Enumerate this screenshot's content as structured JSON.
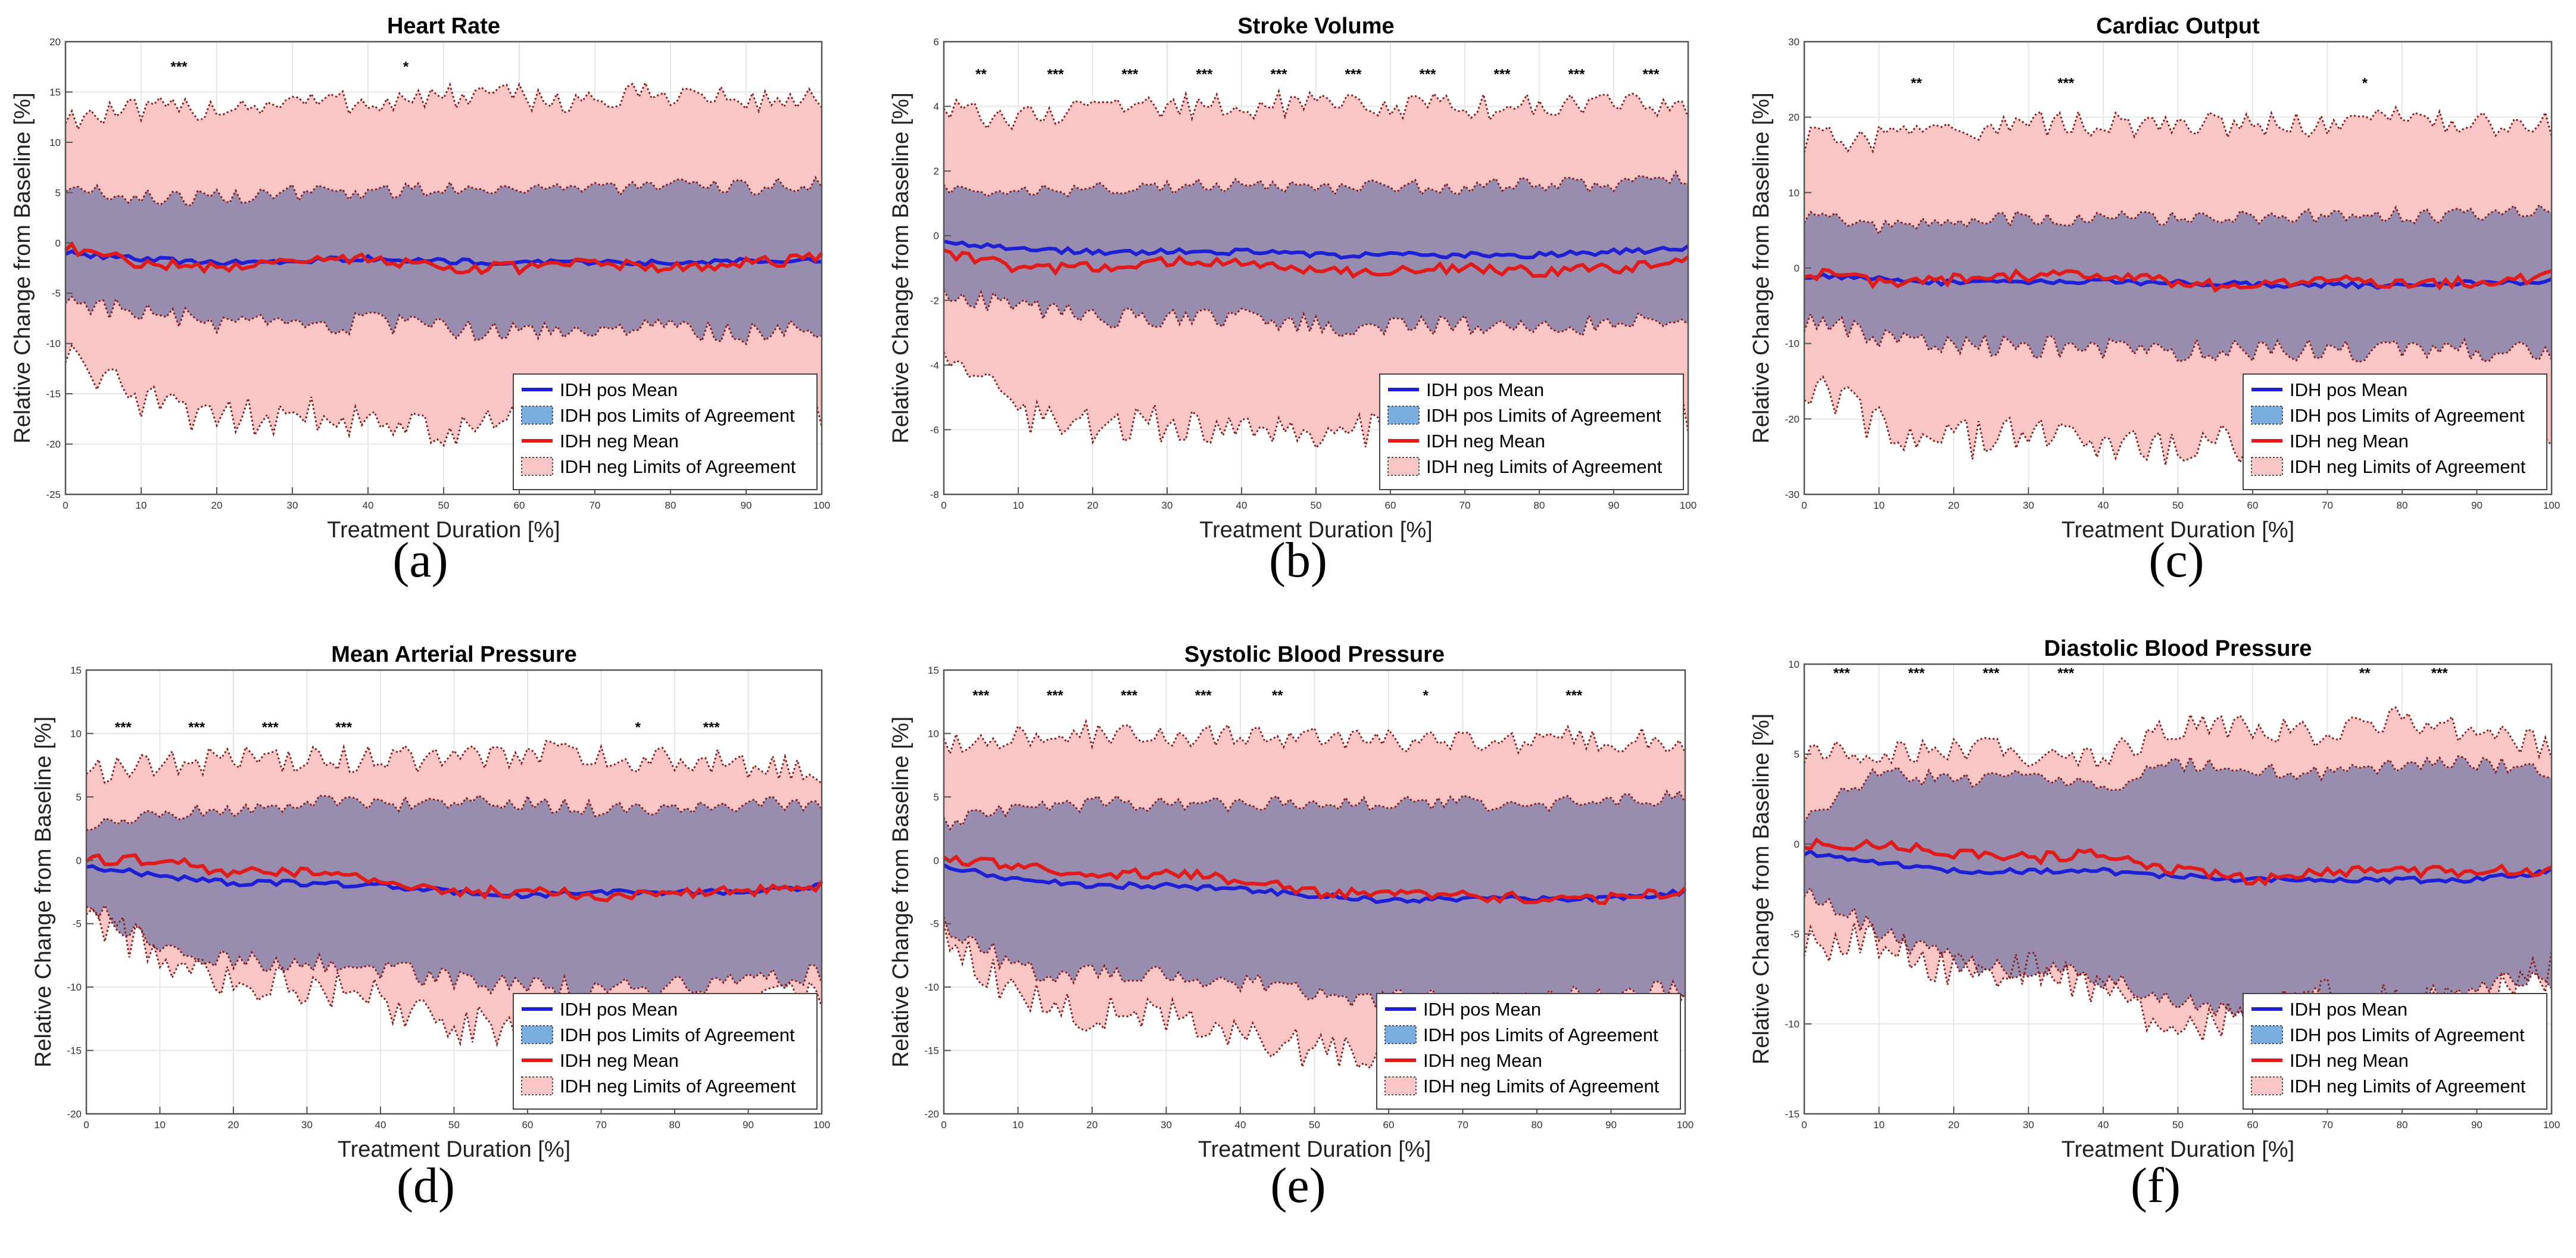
{
  "figure": {
    "legend_labels": [
      "IDH pos Mean",
      "IDH pos Limits of Agreement",
      "IDH neg Mean",
      "IDH neg Limits of Agreement"
    ],
    "colors": {
      "pos_line": "#1f1fd6",
      "pos_fill": "#7aaee0",
      "neg_line": "#e11a1a",
      "neg_fill": "#f9c6c6",
      "overlap_fill": "#8f87ad",
      "bound_line": "#8b1a1a"
    }
  },
  "chart_data": [
    {
      "type": "area",
      "panel_label": "(a)",
      "title": "Heart Rate",
      "xlabel": "Treatment Duration [%]",
      "ylabel": "Relative Change from Baseline [%]",
      "xlim": [
        0,
        100
      ],
      "ylim": [
        -25,
        20
      ],
      "xticks": [
        0,
        10,
        20,
        30,
        40,
        50,
        60,
        70,
        80,
        90,
        100
      ],
      "yticks": [
        -25,
        -20,
        -15,
        -10,
        -5,
        0,
        5,
        10,
        15,
        20
      ],
      "grid": true,
      "legend_position": "bottom-right",
      "x": [
        0,
        10,
        20,
        30,
        40,
        50,
        60,
        70,
        80,
        90,
        100
      ],
      "series": [
        {
          "name": "IDH pos Mean",
          "values": [
            -1,
            -1.6,
            -2,
            -1.8,
            -1.5,
            -1.8,
            -2,
            -1.9,
            -2,
            -1.8,
            -1.6
          ]
        },
        {
          "name": "IDH pos Limits of Agreement (upper)",
          "values": [
            5.5,
            4.5,
            4.5,
            5,
            5,
            5.5,
            5.5,
            5.5,
            5.5,
            5.5,
            6
          ]
        },
        {
          "name": "IDH pos Limits of Agreement (lower)",
          "values": [
            -5.5,
            -7,
            -8,
            -8.5,
            -8,
            -8.5,
            -9,
            -8.5,
            -8.5,
            -9,
            -8.5
          ]
        },
        {
          "name": "IDH neg Mean",
          "values": [
            -0.5,
            -2,
            -2.5,
            -1.5,
            -1.5,
            -2.5,
            -2.5,
            -2,
            -2.5,
            -2,
            -1.5
          ]
        },
        {
          "name": "IDH neg Limits of Agreement (upper)",
          "values": [
            12.5,
            13,
            13.5,
            14,
            14,
            14.5,
            14.5,
            14,
            15,
            14,
            14.5
          ]
        },
        {
          "name": "IDH neg Limits of Agreement (lower)",
          "values": [
            -11,
            -16,
            -17.5,
            -17,
            -17.5,
            -18.5,
            -18,
            -17.5,
            -17.5,
            -17,
            -16.5
          ]
        }
      ],
      "annotations": [
        {
          "x": 15,
          "text": "***"
        },
        {
          "x": 45,
          "text": "*"
        }
      ],
      "annotation_y": 17.5
    },
    {
      "type": "area",
      "panel_label": "(b)",
      "title": "Stroke Volume",
      "xlabel": "Treatment Duration [%]",
      "ylabel": "Relative Change from Baseline [%]",
      "xlim": [
        0,
        100
      ],
      "ylim": [
        -8,
        6
      ],
      "xticks": [
        0,
        10,
        20,
        30,
        40,
        50,
        60,
        70,
        80,
        90,
        100
      ],
      "yticks": [
        -8,
        -6,
        -4,
        -2,
        0,
        2,
        4,
        6
      ],
      "grid": true,
      "legend_position": "bottom-right",
      "x": [
        0,
        10,
        20,
        30,
        40,
        50,
        60,
        70,
        80,
        90,
        100
      ],
      "series": [
        {
          "name": "IDH pos Mean",
          "values": [
            -0.2,
            -0.4,
            -0.5,
            -0.5,
            -0.5,
            -0.6,
            -0.6,
            -0.6,
            -0.6,
            -0.5,
            -0.4
          ]
        },
        {
          "name": "IDH pos Limits of Agreement (upper)",
          "values": [
            1.5,
            1.3,
            1.4,
            1.5,
            1.5,
            1.5,
            1.5,
            1.5,
            1.6,
            1.6,
            1.8
          ]
        },
        {
          "name": "IDH pos Limits of Agreement (lower)",
          "values": [
            -1.8,
            -2.2,
            -2.5,
            -2.6,
            -2.6,
            -2.8,
            -2.8,
            -2.8,
            -2.8,
            -2.7,
            -2.5
          ]
        },
        {
          "name": "IDH neg Mean",
          "values": [
            -0.5,
            -1,
            -1,
            -0.8,
            -0.8,
            -1.1,
            -1.1,
            -1,
            -1.1,
            -1,
            -0.8
          ]
        },
        {
          "name": "IDH neg Limits of Agreement (upper)",
          "values": [
            3.8,
            3.7,
            3.8,
            4,
            4,
            4.1,
            4,
            4,
            4,
            4,
            4
          ]
        },
        {
          "name": "IDH neg Limits of Agreement (lower)",
          "values": [
            -3.8,
            -5.5,
            -5.8,
            -5.8,
            -5.8,
            -6.2,
            -6,
            -5.8,
            -5.8,
            -5.8,
            -5.5
          ]
        }
      ],
      "annotations": [
        {
          "x": 5,
          "text": "**"
        },
        {
          "x": 15,
          "text": "***"
        },
        {
          "x": 25,
          "text": "***"
        },
        {
          "x": 35,
          "text": "***"
        },
        {
          "x": 45,
          "text": "***"
        },
        {
          "x": 55,
          "text": "***"
        },
        {
          "x": 65,
          "text": "***"
        },
        {
          "x": 75,
          "text": "***"
        },
        {
          "x": 85,
          "text": "***"
        },
        {
          "x": 95,
          "text": "***"
        }
      ],
      "annotation_y": 5
    },
    {
      "type": "area",
      "panel_label": "(c)",
      "title": "Cardiac Output",
      "xlabel": "Treatment Duration [%]",
      "ylabel": "Relative Change from Baseline [%]",
      "xlim": [
        0,
        100
      ],
      "ylim": [
        -30,
        30
      ],
      "xticks": [
        0,
        10,
        20,
        30,
        40,
        50,
        60,
        70,
        80,
        90,
        100
      ],
      "yticks": [
        -30,
        -20,
        -10,
        0,
        10,
        20,
        30
      ],
      "grid": true,
      "legend_position": "bottom-right",
      "x": [
        0,
        10,
        20,
        30,
        40,
        50,
        60,
        70,
        80,
        90,
        100
      ],
      "series": [
        {
          "name": "IDH pos Mean",
          "values": [
            -1,
            -1.5,
            -2,
            -1.8,
            -1.8,
            -2,
            -2.2,
            -2.2,
            -2.3,
            -2,
            -1.8
          ]
        },
        {
          "name": "IDH pos Limits of Agreement (upper)",
          "values": [
            7,
            5.5,
            6,
            6.5,
            6.5,
            6.5,
            6.5,
            7,
            7,
            7,
            8
          ]
        },
        {
          "name": "IDH pos Limits of Agreement (lower)",
          "values": [
            -7,
            -9,
            -10,
            -10.5,
            -10.5,
            -11,
            -11,
            -11,
            -11,
            -11,
            -11
          ]
        },
        {
          "name": "IDH neg Mean",
          "values": [
            -0.5,
            -2,
            -1.5,
            -1,
            -1,
            -2,
            -2.5,
            -1.5,
            -2,
            -2,
            -1
          ]
        },
        {
          "name": "IDH neg Limits of Agreement (upper)",
          "values": [
            17,
            17,
            18,
            19,
            19,
            19,
            19,
            19,
            20,
            19,
            19
          ]
        },
        {
          "name": "IDH neg Limits of Agreement (lower)",
          "values": [
            -15,
            -21,
            -23,
            -22,
            -23,
            -24,
            -23,
            -22,
            -22,
            -22,
            -21
          ]
        }
      ],
      "annotations": [
        {
          "x": 15,
          "text": "**"
        },
        {
          "x": 35,
          "text": "***"
        },
        {
          "x": 75,
          "text": "*"
        }
      ],
      "annotation_y": 24.5
    },
    {
      "type": "area",
      "panel_label": "(d)",
      "title": "Mean Arterial Pressure",
      "xlabel": "Treatment Duration [%]",
      "ylabel": "Relative Change from Baseline [%]",
      "xlim": [
        0,
        100
      ],
      "ylim": [
        -20,
        15
      ],
      "xticks": [
        0,
        10,
        20,
        30,
        40,
        50,
        60,
        70,
        80,
        90,
        100
      ],
      "yticks": [
        -20,
        -15,
        -10,
        -5,
        0,
        5,
        10,
        15
      ],
      "grid": true,
      "legend_position": "bottom-right",
      "x": [
        0,
        10,
        20,
        30,
        40,
        50,
        60,
        70,
        80,
        90,
        100
      ],
      "series": [
        {
          "name": "IDH pos Mean",
          "values": [
            -0.5,
            -1.2,
            -1.8,
            -1.8,
            -2,
            -2.5,
            -2.8,
            -2.5,
            -2.5,
            -2.5,
            -2
          ]
        },
        {
          "name": "IDH pos Limits of Agreement (upper)",
          "values": [
            2.5,
            3.5,
            4,
            4.5,
            4.5,
            4.5,
            4.5,
            4,
            4,
            4.5,
            4.5
          ]
        },
        {
          "name": "IDH pos Limits of Agreement (lower)",
          "values": [
            -3.5,
            -7,
            -8,
            -8,
            -8.5,
            -9.5,
            -10,
            -10,
            -10,
            -9.5,
            -9
          ]
        },
        {
          "name": "IDH neg Mean",
          "values": [
            0,
            0,
            -1,
            -1,
            -1.5,
            -2.5,
            -2.5,
            -2.8,
            -2.5,
            -2.5,
            -2
          ]
        },
        {
          "name": "IDH neg Limits of Agreement (upper)",
          "values": [
            7,
            7.5,
            8,
            8,
            8,
            8,
            8.5,
            8,
            8,
            7.5,
            7
          ]
        },
        {
          "name": "IDH neg Limits of Agreement (lower)",
          "values": [
            -4,
            -8,
            -10,
            -10,
            -11,
            -13,
            -13,
            -12,
            -12,
            -12,
            -10
          ]
        }
      ],
      "annotations": [
        {
          "x": 5,
          "text": "***"
        },
        {
          "x": 15,
          "text": "***"
        },
        {
          "x": 25,
          "text": "***"
        },
        {
          "x": 35,
          "text": "***"
        },
        {
          "x": 75,
          "text": "*"
        },
        {
          "x": 85,
          "text": "***"
        }
      ],
      "annotation_y": 10.5
    },
    {
      "type": "area",
      "panel_label": "(e)",
      "title": "Systolic Blood Pressure",
      "xlabel": "Treatment Duration [%]",
      "ylabel": "Relative Change from Baseline [%]",
      "xlim": [
        0,
        100
      ],
      "ylim": [
        -20,
        15
      ],
      "xticks": [
        0,
        10,
        20,
        30,
        40,
        50,
        60,
        70,
        80,
        90,
        100
      ],
      "yticks": [
        -20,
        -15,
        -10,
        -5,
        0,
        5,
        10,
        15
      ],
      "grid": true,
      "legend_position": "bottom-right",
      "x": [
        0,
        10,
        20,
        30,
        40,
        50,
        60,
        70,
        80,
        90,
        100
      ],
      "series": [
        {
          "name": "IDH pos Mean",
          "values": [
            -0.5,
            -1.5,
            -2,
            -2,
            -2.3,
            -2.8,
            -3.2,
            -3,
            -3,
            -3,
            -2.5
          ]
        },
        {
          "name": "IDH pos Limits of Agreement (upper)",
          "values": [
            3,
            4,
            4.5,
            4.5,
            4.5,
            4.5,
            4.5,
            4.5,
            4.5,
            4.5,
            5
          ]
        },
        {
          "name": "IDH pos Limits of Agreement (lower)",
          "values": [
            -5,
            -8.5,
            -9,
            -9,
            -9.5,
            -10.5,
            -11,
            -11,
            -11,
            -10.5,
            -10
          ]
        },
        {
          "name": "IDH neg Mean",
          "values": [
            0,
            -0.5,
            -1,
            -1,
            -1.5,
            -2.5,
            -2.8,
            -2.8,
            -3,
            -3,
            -2.5
          ]
        },
        {
          "name": "IDH neg Limits of Agreement (upper)",
          "values": [
            9,
            10,
            10,
            10,
            10,
            9.5,
            9.5,
            9.5,
            9.5,
            9.5,
            9.5
          ]
        },
        {
          "name": "IDH neg Limits of Agreement (lower)",
          "values": [
            -6,
            -11,
            -12,
            -12,
            -14,
            -15,
            -15,
            -14,
            -14,
            -14,
            -12
          ]
        }
      ],
      "annotations": [
        {
          "x": 5,
          "text": "***"
        },
        {
          "x": 15,
          "text": "***"
        },
        {
          "x": 25,
          "text": "***"
        },
        {
          "x": 35,
          "text": "***"
        },
        {
          "x": 45,
          "text": "**"
        },
        {
          "x": 65,
          "text": "*"
        },
        {
          "x": 85,
          "text": "***"
        }
      ],
      "annotation_y": 13
    },
    {
      "type": "area",
      "panel_label": "(f)",
      "title": "Diastolic Blood Pressure",
      "xlabel": "Treatment Duration [%]",
      "ylabel": "Relative Change from Baseline [%]",
      "xlim": [
        0,
        100
      ],
      "ylim": [
        -15,
        10
      ],
      "xticks": [
        0,
        10,
        20,
        30,
        40,
        50,
        60,
        70,
        80,
        90,
        100
      ],
      "yticks": [
        -15,
        -10,
        -5,
        0,
        5,
        10
      ],
      "grid": true,
      "legend_position": "bottom-right",
      "x": [
        0,
        10,
        20,
        30,
        40,
        50,
        60,
        70,
        80,
        90,
        100
      ],
      "series": [
        {
          "name": "IDH pos Mean",
          "values": [
            -0.5,
            -1,
            -1.5,
            -1.5,
            -1.5,
            -1.8,
            -2,
            -2,
            -2,
            -2,
            -1.5
          ]
        },
        {
          "name": "IDH pos Limits of Agreement (upper)",
          "values": [
            1.5,
            4,
            3.5,
            4,
            3,
            4.5,
            4,
            4,
            4.5,
            4.5,
            4
          ]
        },
        {
          "name": "IDH pos Limits of Agreement (lower)",
          "values": [
            -2.5,
            -5,
            -6.5,
            -7,
            -7.5,
            -9,
            -9,
            -8.5,
            -8.5,
            -8,
            -7.5
          ]
        },
        {
          "name": "IDH neg Mean",
          "values": [
            0,
            0,
            -0.5,
            -0.8,
            -0.5,
            -1.5,
            -2,
            -1.5,
            -1.5,
            -1.5,
            -1.5
          ]
        },
        {
          "name": "IDH neg Limits of Agreement (upper)",
          "values": [
            5,
            5,
            5.5,
            5,
            5,
            6.5,
            6.5,
            6,
            7,
            6,
            5.5
          ]
        },
        {
          "name": "IDH neg Limits of Agreement (lower)",
          "values": [
            -5.5,
            -5.5,
            -7,
            -7,
            -8,
            -11,
            -9,
            -8.5,
            -9,
            -9,
            -7
          ]
        }
      ],
      "annotations": [
        {
          "x": 5,
          "text": "***"
        },
        {
          "x": 15,
          "text": "***"
        },
        {
          "x": 25,
          "text": "***"
        },
        {
          "x": 35,
          "text": "***"
        },
        {
          "x": 75,
          "text": "**"
        },
        {
          "x": 85,
          "text": "***"
        }
      ],
      "annotation_y": 9.5
    }
  ]
}
